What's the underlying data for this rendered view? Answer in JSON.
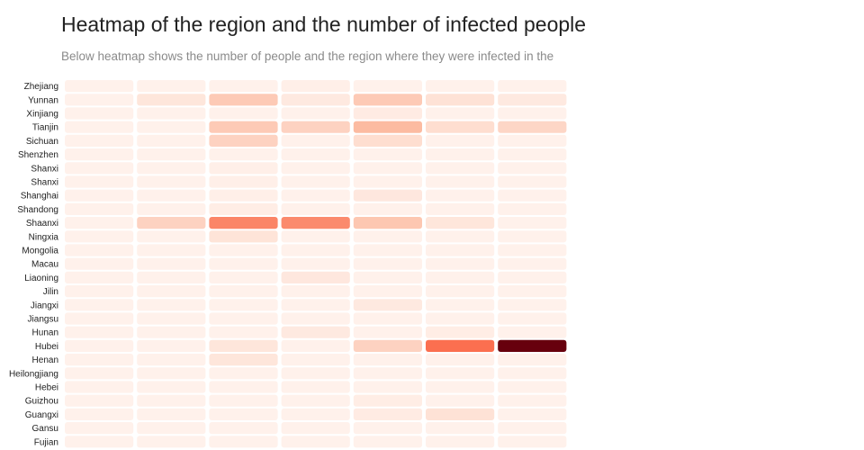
{
  "title": "Heatmap of the region and the number of infected people",
  "subtitle": "Below heatmap shows the number of people and the region where they were infected in the",
  "chart_data": {
    "type": "heatmap",
    "title": "Heatmap of the region and the number of infected people",
    "subtitle": "Below heatmap shows the number of people and the region where they were infected in the",
    "rows": [
      "Zhejiang",
      "Yunnan",
      "Xinjiang",
      "Tianjin",
      "Sichuan",
      "Shenzhen",
      "Shanxi",
      "Shanxi",
      "Shanghai",
      "Shandong",
      "Shaanxi",
      "Ningxia",
      "Mongolia",
      "Macau",
      "Liaoning",
      "Jilin",
      "Jiangxi",
      "Jiangsu",
      "Hunan",
      "Hubei",
      "Henan",
      "Heilongjiang",
      "Hebei",
      "Guizhou",
      "Guangxi",
      "Gansu",
      "Fujian"
    ],
    "columns": 7,
    "color_scale": [
      "#fff5f0",
      "#fcbba1",
      "#fb6a4a",
      "#67000d"
    ],
    "values": [
      [
        0.02,
        0.02,
        0.02,
        0.03,
        0.02,
        0.02,
        0.02
      ],
      [
        0.02,
        0.08,
        0.22,
        0.06,
        0.22,
        0.1,
        0.06
      ],
      [
        0.02,
        0.02,
        0.02,
        0.02,
        0.05,
        0.02,
        0.02
      ],
      [
        0.02,
        0.02,
        0.22,
        0.18,
        0.3,
        0.12,
        0.16
      ],
      [
        0.02,
        0.02,
        0.18,
        0.02,
        0.12,
        0.02,
        0.02
      ],
      [
        0.02,
        0.02,
        0.02,
        0.02,
        0.02,
        0.02,
        0.02
      ],
      [
        0.02,
        0.02,
        0.03,
        0.02,
        0.02,
        0.02,
        0.02
      ],
      [
        0.02,
        0.02,
        0.03,
        0.02,
        0.02,
        0.02,
        0.02
      ],
      [
        0.02,
        0.02,
        0.03,
        0.02,
        0.07,
        0.02,
        0.02
      ],
      [
        0.02,
        0.02,
        0.04,
        0.02,
        0.02,
        0.02,
        0.02
      ],
      [
        0.02,
        0.18,
        0.5,
        0.48,
        0.24,
        0.08,
        0.02
      ],
      [
        0.02,
        0.02,
        0.09,
        0.02,
        0.02,
        0.02,
        0.02
      ],
      [
        0.02,
        0.02,
        0.02,
        0.02,
        0.02,
        0.02,
        0.02
      ],
      [
        0.02,
        0.02,
        0.02,
        0.02,
        0.02,
        0.02,
        0.02
      ],
      [
        0.02,
        0.02,
        0.02,
        0.07,
        0.02,
        0.02,
        0.02
      ],
      [
        0.02,
        0.02,
        0.02,
        0.02,
        0.02,
        0.02,
        0.02
      ],
      [
        0.02,
        0.02,
        0.02,
        0.02,
        0.06,
        0.02,
        0.02
      ],
      [
        0.02,
        0.02,
        0.02,
        0.02,
        0.02,
        0.02,
        0.02
      ],
      [
        0.02,
        0.02,
        0.02,
        0.06,
        0.02,
        0.04,
        0.02
      ],
      [
        0.02,
        0.02,
        0.08,
        0.02,
        0.18,
        0.58,
        1.0
      ],
      [
        0.02,
        0.02,
        0.08,
        0.02,
        0.02,
        0.02,
        0.02
      ],
      [
        0.02,
        0.02,
        0.02,
        0.02,
        0.02,
        0.02,
        0.02
      ],
      [
        0.02,
        0.02,
        0.02,
        0.02,
        0.02,
        0.02,
        0.02
      ],
      [
        0.02,
        0.02,
        0.02,
        0.02,
        0.04,
        0.02,
        0.02
      ],
      [
        0.02,
        0.02,
        0.02,
        0.02,
        0.05,
        0.1,
        0.02
      ],
      [
        0.02,
        0.02,
        0.02,
        0.02,
        0.02,
        0.02,
        0.02
      ],
      [
        0.02,
        0.02,
        0.02,
        0.02,
        0.02,
        0.02,
        0.02
      ]
    ]
  }
}
